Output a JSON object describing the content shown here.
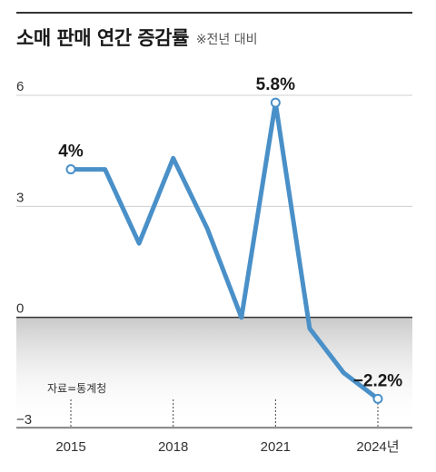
{
  "header": {
    "title": "소매 판매 연간 증감률",
    "subtitle": "※전년 대비"
  },
  "source": "자료=통계청",
  "chart_data": {
    "type": "line",
    "title": "소매 판매 연간 증감률",
    "subtitle": "※전년 대비",
    "x": [
      2015,
      2016,
      2017,
      2018,
      2019,
      2020,
      2021,
      2022,
      2023,
      2024
    ],
    "values": [
      4.0,
      4.0,
      2.0,
      4.3,
      2.4,
      0.0,
      5.8,
      -0.3,
      -1.5,
      -2.2
    ],
    "ylim": [
      -3,
      6
    ],
    "yticks": [
      6,
      3,
      0,
      -3
    ],
    "xticks": [
      2015,
      2018,
      2021,
      2024
    ],
    "xtick_labels": [
      "2015",
      "2018",
      "2021",
      "2024년"
    ],
    "data_labels": [
      {
        "x": 2015,
        "text": "4%"
      },
      {
        "x": 2021,
        "text": "5.8%"
      },
      {
        "x": 2024,
        "text": "-2.2%"
      }
    ],
    "line_color": "#4a90c8",
    "grid": true
  }
}
